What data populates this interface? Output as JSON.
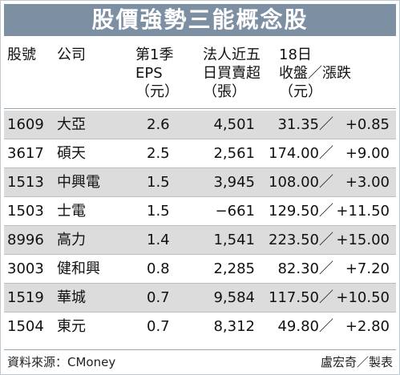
{
  "title": "股價強勢三能概念股",
  "headers": {
    "code": [
      "股號"
    ],
    "company": [
      "公司"
    ],
    "eps": [
      "第1季",
      "EPS",
      "（元）"
    ],
    "net": [
      "法人近五",
      "日買賣超",
      "（張）"
    ],
    "close": [
      "18日",
      "收盤／漲跌",
      "（元）"
    ]
  },
  "rows": [
    {
      "code": "1609",
      "company": "大亞",
      "eps": "2.6",
      "net": "4,501",
      "close": "31.35／",
      "change": "+0.85"
    },
    {
      "code": "3617",
      "company": "碩天",
      "eps": "2.5",
      "net": "2,561",
      "close": "174.00／",
      "change": "+9.00"
    },
    {
      "code": "1513",
      "company": "中興電",
      "eps": "1.5",
      "net": "3,945",
      "close": "108.00／",
      "change": "+3.00"
    },
    {
      "code": "1503",
      "company": "士電",
      "eps": "1.5",
      "net": "−661",
      "close": "129.50／",
      "change": "+11.50"
    },
    {
      "code": "8996",
      "company": "高力",
      "eps": "1.4",
      "net": "1,541",
      "close": "223.50／",
      "change": "+15.00"
    },
    {
      "code": "3003",
      "company": "健和興",
      "eps": "0.8",
      "net": "2,285",
      "close": "82.30／",
      "change": "+7.20"
    },
    {
      "code": "1519",
      "company": "華城",
      "eps": "0.7",
      "net": "9,584",
      "close": "117.50／",
      "change": "+10.50"
    },
    {
      "code": "1504",
      "company": "東元",
      "eps": "0.7",
      "net": "8,312",
      "close": "49.80／",
      "change": "+2.80"
    }
  ],
  "footer": {
    "source": "資料來源：CMoney",
    "credit": "盧宏奇／製表"
  },
  "colors": {
    "title_bar": "#7c8fa3",
    "row_shade": "#dcdcdc"
  }
}
